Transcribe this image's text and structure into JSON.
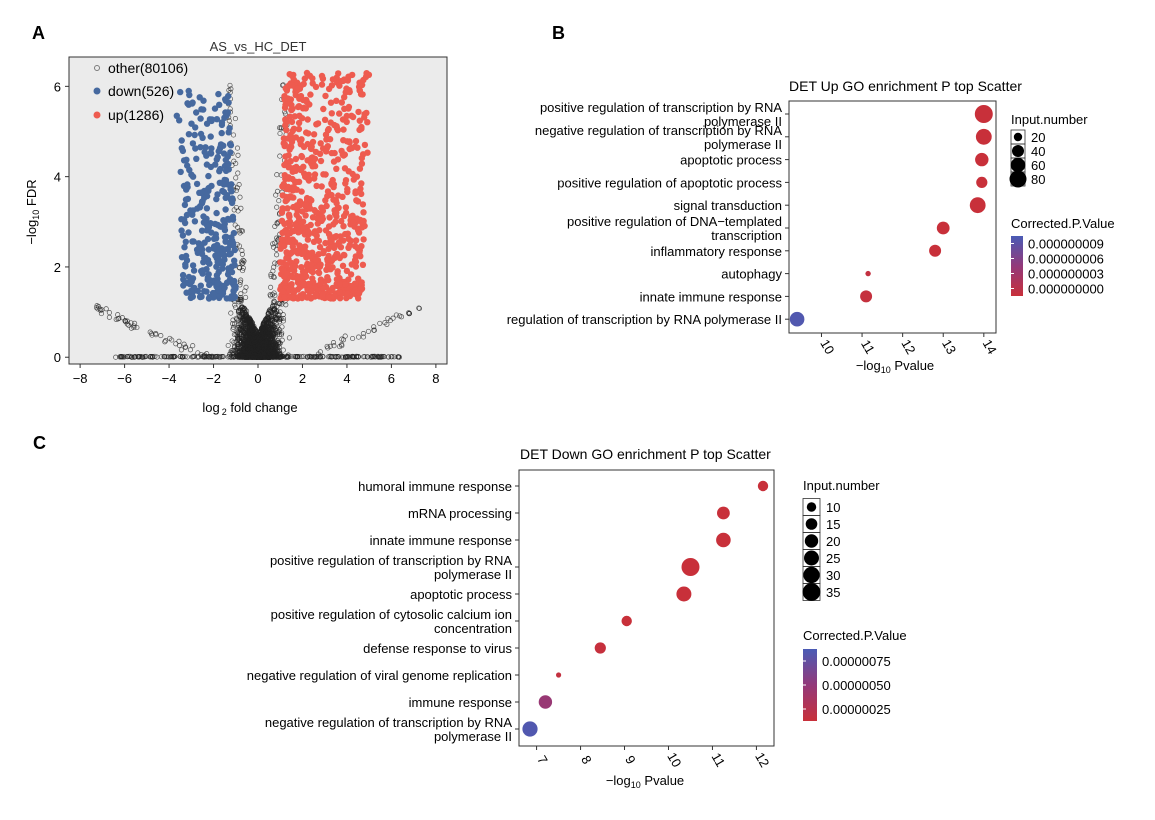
{
  "colors": {
    "up": "#ee5b4f",
    "down": "#46699f",
    "other": "#7a7a7a",
    "bg": "#ebebeb",
    "grad_high": "#4a5bb5",
    "grad_low": "#c8303a"
  },
  "chart_data": [
    {
      "panel": "A",
      "type": "scatter",
      "title": "AS_vs_HC_DET",
      "xlabel_main": "log",
      "xlabel_sub": "2",
      "xlabel_rest": " fold change",
      "ylabel_main": "−log",
      "ylabel_sub": "10",
      "ylabel_rest": " FDR",
      "xlim": [
        -8.5,
        8.5
      ],
      "ylim": [
        -0.15,
        6.65
      ],
      "xticks": [
        -8,
        -6,
        -4,
        -2,
        0,
        2,
        4,
        6,
        8
      ],
      "yticks": [
        0,
        2,
        4,
        6
      ],
      "legend": [
        {
          "key": "other",
          "label": "other(80106)"
        },
        {
          "key": "down",
          "label": "down(526)"
        },
        {
          "key": "up",
          "label": "up(1286)"
        }
      ]
    },
    {
      "panel": "B",
      "type": "scatter",
      "title": "DET Up GO enrichment P top Scatter",
      "xlabel_main": "−log",
      "xlabel_sub": "10",
      "xlabel_rest": " Pvalue",
      "xlim": [
        9.2,
        14.3
      ],
      "xticks": [
        10,
        11,
        12,
        13,
        14
      ],
      "size_legend_title": "Input.number",
      "size_legend": [
        20,
        40,
        60,
        80
      ],
      "color_legend_title": "Corrected.P.Value",
      "color_legend": [
        "0.000000009",
        "0.000000006",
        "0.000000003",
        "0.000000000"
      ],
      "terms": [
        {
          "label": [
            "positive regulation of transcription by RNA",
            "polymerase II"
          ],
          "x": 14.0,
          "size": 90,
          "color": 0.0
        },
        {
          "label": [
            "negative regulation of transcription by RNA",
            "polymerase II"
          ],
          "x": 14.0,
          "size": 70,
          "color": 0.0
        },
        {
          "label": [
            "apoptotic process"
          ],
          "x": 13.95,
          "size": 50,
          "color": 0.0
        },
        {
          "label": [
            "positive regulation of apoptotic process"
          ],
          "x": 13.95,
          "size": 35,
          "color": 0.0
        },
        {
          "label": [
            "signal transduction"
          ],
          "x": 13.85,
          "size": 70,
          "color": 0.0
        },
        {
          "label": [
            "positive regulation of DNA−templated",
            "transcription"
          ],
          "x": 13.0,
          "size": 45,
          "color": 0.0
        },
        {
          "label": [
            "inflammatory response"
          ],
          "x": 12.8,
          "size": 40,
          "color": 0.0
        },
        {
          "label": [
            "autophagy"
          ],
          "x": 11.15,
          "size": 8,
          "color": 0.05
        },
        {
          "label": [
            "innate immune response"
          ],
          "x": 11.1,
          "size": 40,
          "color": 0.03
        },
        {
          "label": [
            "regulation of transcription by RNA polymerase II"
          ],
          "x": 9.4,
          "size": 60,
          "color": 0.95
        }
      ]
    },
    {
      "panel": "C",
      "type": "scatter",
      "title": "DET Down GO enrichment P top Scatter",
      "xlabel_main": "−log",
      "xlabel_sub": "10",
      "xlabel_rest": " Pvalue",
      "xlim": [
        6.6,
        12.4
      ],
      "xticks": [
        7,
        8,
        9,
        10,
        11,
        12
      ],
      "size_legend_title": "Input.number",
      "size_legend": [
        10,
        15,
        20,
        25,
        30,
        35
      ],
      "color_legend_title": "Corrected.P.Value",
      "color_legend": [
        "0.00000075",
        "0.00000050",
        "0.00000025"
      ],
      "terms": [
        {
          "label": [
            "humoral immune response"
          ],
          "x": 12.15,
          "size": 12,
          "color": 0.0
        },
        {
          "label": [
            "mRNA processing"
          ],
          "x": 11.25,
          "size": 18,
          "color": 0.0
        },
        {
          "label": [
            "innate immune response"
          ],
          "x": 11.25,
          "size": 24,
          "color": 0.0
        },
        {
          "label": [
            "positive regulation of transcription by RNA",
            "polymerase II"
          ],
          "x": 10.5,
          "size": 36,
          "color": 0.0
        },
        {
          "label": [
            "apoptotic process"
          ],
          "x": 10.35,
          "size": 25,
          "color": 0.0
        },
        {
          "label": [
            "positive regulation of cytosolic calcium ion",
            "concentration"
          ],
          "x": 9.05,
          "size": 12,
          "color": 0.0
        },
        {
          "label": [
            "defense response to virus"
          ],
          "x": 8.45,
          "size": 14,
          "color": 0.02
        },
        {
          "label": [
            "negative regulation of viral genome replication"
          ],
          "x": 7.5,
          "size": 3,
          "color": 0.05
        },
        {
          "label": [
            "immune response"
          ],
          "x": 7.2,
          "size": 20,
          "color": 0.45
        },
        {
          "label": [
            "negative regulation of transcription by RNA",
            "polymerase II"
          ],
          "x": 6.85,
          "size": 26,
          "color": 0.95
        }
      ]
    }
  ],
  "panel_labels": {
    "a": "A",
    "b": "B",
    "c": "C"
  }
}
